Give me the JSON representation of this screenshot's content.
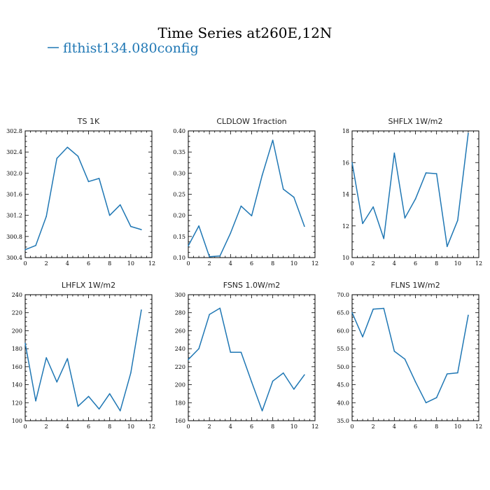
{
  "figure": {
    "title": "Time Series at260E,12N",
    "legend_label": "flthist134.080config",
    "series_color": "#1f77b4"
  },
  "chart_data": [
    {
      "type": "line",
      "title": "TS   1K",
      "x": [
        0,
        1,
        2,
        3,
        4,
        5,
        6,
        7,
        8,
        9,
        10,
        11
      ],
      "values": [
        300.55,
        300.63,
        301.18,
        302.28,
        302.49,
        302.32,
        301.84,
        301.9,
        301.2,
        301.4,
        300.99,
        300.93
      ],
      "xlim": [
        0,
        12
      ],
      "ylim": [
        300.4,
        302.8
      ],
      "xticks": [
        "0",
        "2",
        "4",
        "6",
        "8",
        "10",
        "12"
      ],
      "yticks": [
        "300.4",
        "300.8",
        "301.2",
        "301.6",
        "302.0",
        "302.4",
        "302.8"
      ],
      "xtick_values": [
        0,
        2,
        4,
        6,
        8,
        10,
        12
      ],
      "ytick_values": [
        300.4,
        300.8,
        301.2,
        301.6,
        302.0,
        302.4,
        302.8
      ]
    },
    {
      "type": "line",
      "title": "CLDLOW   1fraction",
      "x": [
        0,
        1,
        2,
        3,
        4,
        5,
        6,
        7,
        8,
        9,
        10,
        11
      ],
      "values": [
        0.128,
        0.175,
        0.102,
        0.104,
        0.158,
        0.222,
        0.199,
        0.295,
        0.378,
        0.262,
        0.243,
        0.174
      ],
      "xlim": [
        0,
        12
      ],
      "ylim": [
        0.1,
        0.4
      ],
      "xticks": [
        "0",
        "2",
        "4",
        "6",
        "8",
        "10",
        "12"
      ],
      "yticks": [
        "0.10",
        "0.15",
        "0.20",
        "0.25",
        "0.30",
        "0.35",
        "0.40"
      ],
      "xtick_values": [
        0,
        2,
        4,
        6,
        8,
        10,
        12
      ],
      "ytick_values": [
        0.1,
        0.15,
        0.2,
        0.25,
        0.3,
        0.35,
        0.4
      ]
    },
    {
      "type": "line",
      "title": "SHFLX   1W/m2",
      "x": [
        0,
        1,
        2,
        3,
        4,
        5,
        6,
        7,
        8,
        9,
        10,
        11
      ],
      "values": [
        16.0,
        12.15,
        13.2,
        11.2,
        16.6,
        12.5,
        13.7,
        15.35,
        15.3,
        10.7,
        12.35,
        17.85
      ],
      "xlim": [
        0,
        12
      ],
      "ylim": [
        10,
        18
      ],
      "xticks": [
        "0",
        "2",
        "4",
        "6",
        "8",
        "10",
        "12"
      ],
      "yticks": [
        "10",
        "12",
        "14",
        "16",
        "18"
      ],
      "xtick_values": [
        0,
        2,
        4,
        6,
        8,
        10,
        12
      ],
      "ytick_values": [
        10,
        12,
        14,
        16,
        18
      ]
    },
    {
      "type": "line",
      "title": "LHFLX   1W/m2",
      "x": [
        0,
        1,
        2,
        3,
        4,
        5,
        6,
        7,
        8,
        9,
        10,
        11
      ],
      "values": [
        186,
        122,
        170,
        143,
        169,
        116,
        127,
        113,
        130,
        111,
        153,
        223
      ],
      "xlim": [
        0,
        12
      ],
      "ylim": [
        100,
        240
      ],
      "xticks": [
        "0",
        "2",
        "4",
        "6",
        "8",
        "10",
        "12"
      ],
      "yticks": [
        "100",
        "120",
        "140",
        "160",
        "180",
        "200",
        "220",
        "240"
      ],
      "xtick_values": [
        0,
        2,
        4,
        6,
        8,
        10,
        12
      ],
      "ytick_values": [
        100,
        120,
        140,
        160,
        180,
        200,
        220,
        240
      ]
    },
    {
      "type": "line",
      "title": "FSNS   1.0W/m2",
      "x": [
        0,
        1,
        2,
        3,
        4,
        5,
        6,
        7,
        8,
        9,
        10,
        11
      ],
      "values": [
        228,
        240,
        278,
        285,
        236,
        236,
        203,
        171,
        204,
        213,
        195,
        211
      ],
      "xlim": [
        0,
        12
      ],
      "ylim": [
        160,
        300
      ],
      "xticks": [
        "0",
        "2",
        "4",
        "6",
        "8",
        "10",
        "12"
      ],
      "yticks": [
        "160",
        "180",
        "200",
        "220",
        "240",
        "260",
        "280",
        "300"
      ],
      "xtick_values": [
        0,
        2,
        4,
        6,
        8,
        10,
        12
      ],
      "ytick_values": [
        160,
        180,
        200,
        220,
        240,
        260,
        280,
        300
      ]
    },
    {
      "type": "line",
      "title": "FLNS   1W/m2",
      "x": [
        0,
        1,
        2,
        3,
        4,
        5,
        6,
        7,
        8,
        9,
        10,
        11
      ],
      "values": [
        65.0,
        58.3,
        66.0,
        66.2,
        54.3,
        52.1,
        45.8,
        40.0,
        41.4,
        48.0,
        48.3,
        64.3
      ],
      "xlim": [
        0,
        12
      ],
      "ylim": [
        35,
        70
      ],
      "xticks": [
        "0",
        "2",
        "4",
        "6",
        "8",
        "10",
        "12"
      ],
      "yticks": [
        "35.0",
        "40.0",
        "45.0",
        "50.0",
        "55.0",
        "60.0",
        "65.0",
        "70.0"
      ],
      "xtick_values": [
        0,
        2,
        4,
        6,
        8,
        10,
        12
      ],
      "ytick_values": [
        35,
        40,
        45,
        50,
        55,
        60,
        65,
        70
      ]
    }
  ]
}
